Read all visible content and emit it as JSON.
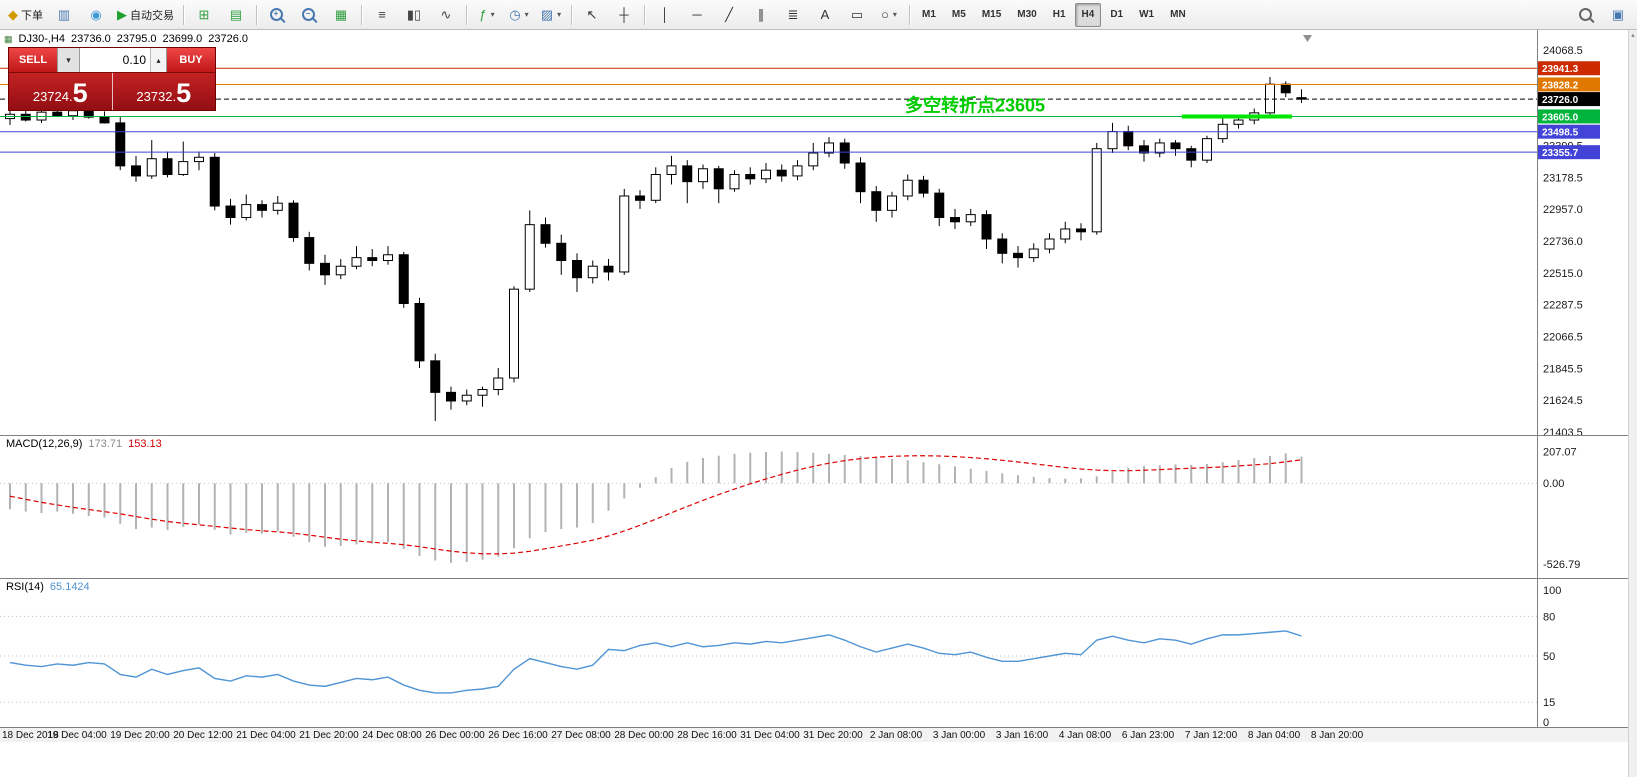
{
  "toolbar": {
    "groups": [
      {
        "items": [
          {
            "name": "new-order-button",
            "glyph": "◆",
            "color": "#d29a00",
            "label": "下单"
          },
          {
            "name": "market-watch-button",
            "glyph": "▥",
            "color": "#4878b0"
          },
          {
            "name": "data-window-button",
            "glyph": "◉",
            "color": "#3f9bd8"
          },
          {
            "name": "autotrade-button",
            "glyph": "▶",
            "color": "#1fa12e",
            "label": "自动交易"
          }
        ]
      },
      {
        "items": [
          {
            "name": "new-chart-button",
            "glyph": "⊞",
            "color": "#2e9e3f"
          },
          {
            "name": "profiles-button",
            "glyph": "▤",
            "color": "#2e9e3f"
          }
        ]
      },
      {
        "items": [
          {
            "name": "zoom-in-button",
            "mag": "+",
            "color": "#4878b0"
          },
          {
            "name": "zoom-out-button",
            "mag": "−",
            "color": "#4878b0"
          },
          {
            "name": "grid-button",
            "glyph": "▦",
            "color": "#2e9e3f"
          }
        ]
      },
      {
        "items": [
          {
            "name": "bar-chart-button",
            "glyph": "≡",
            "color": "#444444"
          },
          {
            "name": "candlestick-chart-button",
            "glyph": "▮▯",
            "color": "#444444"
          },
          {
            "name": "line-chart-button",
            "glyph": "∿",
            "color": "#444444"
          }
        ]
      },
      {
        "items": [
          {
            "name": "indicators-button",
            "glyph": "ƒ",
            "color": "#2e9e3f",
            "dropdown": true
          },
          {
            "name": "periods-button",
            "glyph": "◷",
            "color": "#4878b0",
            "dropdown": true
          },
          {
            "name": "templates-button",
            "glyph": "▨",
            "color": "#4878b0",
            "dropdown": true
          }
        ]
      },
      {
        "items": [
          {
            "name": "cursor-button",
            "glyph": "↖",
            "color": "#333333"
          },
          {
            "name": "crosshair-button",
            "glyph": "┼",
            "color": "#333333"
          }
        ]
      },
      {
        "items": [
          {
            "name": "vertical-line-button",
            "glyph": "│",
            "color": "#333333"
          },
          {
            "name": "horizontal-line-button",
            "glyph": "─",
            "color": "#333333"
          },
          {
            "name": "trendline-button",
            "glyph": "╱",
            "color": "#333333"
          },
          {
            "name": "equidistant-channel-button",
            "glyph": "∥",
            "color": "#333333"
          },
          {
            "name": "fibonacci-button",
            "glyph": "≣",
            "color": "#333333"
          },
          {
            "name": "text-button",
            "glyph": "A",
            "color": "#333333"
          },
          {
            "name": "label-button",
            "glyph": "▭",
            "color": "#333333"
          },
          {
            "name": "shapes-button",
            "glyph": "○",
            "color": "#333333",
            "dropdown": true
          }
        ]
      }
    ],
    "timeframes": [
      "M1",
      "M5",
      "M15",
      "M30",
      "H1",
      "H4",
      "D1",
      "W1",
      "MN"
    ],
    "active_timeframe": "H4",
    "right_icons": [
      {
        "name": "search-button",
        "mag": "",
        "color": "#666666"
      },
      {
        "name": "community-button",
        "glyph": "▣",
        "color": "#4878b0"
      }
    ]
  },
  "chart_header": {
    "symbol_period": "DJ30-,H4",
    "open": "23736.0",
    "high": "23795.0",
    "low": "23699.0",
    "close": "23726.0"
  },
  "one_click": {
    "sell_label": "SELL",
    "buy_label": "BUY",
    "lot": "0.10",
    "sell_price": "23724.5",
    "buy_price": "23732.5"
  },
  "annotation": {
    "text": "多空转折点23605",
    "price": 23605,
    "color": "#00cc00"
  },
  "price_levels": [
    {
      "price": 23941.3,
      "label": "23941.3",
      "color": "#cc2a00",
      "style": "solid"
    },
    {
      "price": 23828.2,
      "label": "23828.2",
      "color": "#e07800",
      "style": "solid"
    },
    {
      "price": 23726.0,
      "label": "23726.0",
      "color": "#000000",
      "style": "dashed"
    },
    {
      "price": 23605.0,
      "label": "23605.0",
      "color": "#00b43c",
      "style": "solid"
    },
    {
      "price": 23498.5,
      "label": "23498.5",
      "color": "#4343d8",
      "style": "solid"
    },
    {
      "price": 23355.7,
      "label": "23355.7",
      "color": "#4343d8",
      "style": "solid"
    }
  ],
  "green_segment": {
    "price": 23605,
    "from_bar": 74.4,
    "to_bar": 81.4,
    "color": "#00e600"
  },
  "chart_data": {
    "type": "candlestick+indicators",
    "price": {
      "type": "candlestick",
      "y_axis_ticks": [
        "24068.5",
        "23845.5",
        "23624.5",
        "23399.5",
        "23178.5",
        "22957.0",
        "22736.0",
        "22515.0",
        "22287.5",
        "22066.5",
        "21845.5",
        "21624.5",
        "21403.5"
      ],
      "candles": [
        [
          23590,
          23650,
          23545,
          23620
        ],
        [
          23620,
          23655,
          23570,
          23580
        ],
        [
          23580,
          23648,
          23560,
          23635
        ],
        [
          23635,
          23668,
          23600,
          23610
        ],
        [
          23610,
          23660,
          23580,
          23645
        ],
        [
          23645,
          23665,
          23590,
          23600
        ],
        [
          23600,
          23640,
          23555,
          23560
        ],
        [
          23560,
          23600,
          23230,
          23260
        ],
        [
          23260,
          23330,
          23150,
          23190
        ],
        [
          23190,
          23440,
          23170,
          23310
        ],
        [
          23310,
          23360,
          23180,
          23200
        ],
        [
          23200,
          23430,
          23190,
          23290
        ],
        [
          23290,
          23360,
          23230,
          23320
        ],
        [
          23320,
          23350,
          22950,
          22980
        ],
        [
          22980,
          23030,
          22850,
          22900
        ],
        [
          22900,
          23060,
          22880,
          22990
        ],
        [
          22990,
          23020,
          22900,
          22950
        ],
        [
          22950,
          23050,
          22920,
          23000
        ],
        [
          23000,
          23020,
          22730,
          22760
        ],
        [
          22760,
          22800,
          22530,
          22580
        ],
        [
          22580,
          22640,
          22430,
          22500
        ],
        [
          22500,
          22610,
          22470,
          22560
        ],
        [
          22560,
          22700,
          22540,
          22620
        ],
        [
          22620,
          22680,
          22560,
          22600
        ],
        [
          22600,
          22700,
          22570,
          22640
        ],
        [
          22640,
          22660,
          22270,
          22300
        ],
        [
          22300,
          22340,
          21850,
          21900
        ],
        [
          21900,
          21950,
          21480,
          21680
        ],
        [
          21680,
          21720,
          21560,
          21620
        ],
        [
          21620,
          21700,
          21590,
          21660
        ],
        [
          21660,
          21720,
          21580,
          21700
        ],
        [
          21700,
          21850,
          21660,
          21780
        ],
        [
          21780,
          22420,
          21750,
          22400
        ],
        [
          22400,
          22950,
          22380,
          22850
        ],
        [
          22850,
          22900,
          22690,
          22720
        ],
        [
          22720,
          22780,
          22500,
          22600
        ],
        [
          22600,
          22650,
          22380,
          22480
        ],
        [
          22480,
          22600,
          22440,
          22560
        ],
        [
          22560,
          22610,
          22460,
          22520
        ],
        [
          22520,
          23100,
          22500,
          23050
        ],
        [
          23050,
          23090,
          22960,
          23020
        ],
        [
          23020,
          23250,
          23000,
          23200
        ],
        [
          23200,
          23330,
          23130,
          23260
        ],
        [
          23260,
          23300,
          23000,
          23150
        ],
        [
          23150,
          23270,
          23100,
          23240
        ],
        [
          23240,
          23260,
          23000,
          23100
        ],
        [
          23100,
          23230,
          23080,
          23200
        ],
        [
          23200,
          23250,
          23130,
          23170
        ],
        [
          23170,
          23280,
          23140,
          23230
        ],
        [
          23230,
          23270,
          23150,
          23190
        ],
        [
          23190,
          23300,
          23160,
          23260
        ],
        [
          23260,
          23420,
          23230,
          23350
        ],
        [
          23350,
          23460,
          23320,
          23420
        ],
        [
          23420,
          23450,
          23240,
          23280
        ],
        [
          23280,
          23320,
          23000,
          23080
        ],
        [
          23080,
          23120,
          22870,
          22950
        ],
        [
          22950,
          23080,
          22900,
          23050
        ],
        [
          23050,
          23200,
          23020,
          23160
        ],
        [
          23160,
          23190,
          23040,
          23070
        ],
        [
          23070,
          23100,
          22840,
          22900
        ],
        [
          22900,
          22960,
          22820,
          22870
        ],
        [
          22870,
          22960,
          22840,
          22920
        ],
        [
          22920,
          22950,
          22680,
          22750
        ],
        [
          22750,
          22790,
          22580,
          22650
        ],
        [
          22650,
          22700,
          22550,
          22620
        ],
        [
          22620,
          22720,
          22590,
          22680
        ],
        [
          22680,
          22790,
          22650,
          22750
        ],
        [
          22750,
          22870,
          22720,
          22820
        ],
        [
          22820,
          22860,
          22740,
          22800
        ],
        [
          22800,
          23420,
          22780,
          23380
        ],
        [
          23380,
          23560,
          23350,
          23500
        ],
        [
          23500,
          23540,
          23370,
          23400
        ],
        [
          23400,
          23440,
          23290,
          23350
        ],
        [
          23350,
          23450,
          23320,
          23420
        ],
        [
          23420,
          23440,
          23330,
          23380
        ],
        [
          23380,
          23400,
          23250,
          23300
        ],
        [
          23300,
          23470,
          23280,
          23450
        ],
        [
          23450,
          23600,
          23420,
          23550
        ],
        [
          23550,
          23610,
          23520,
          23580
        ],
        [
          23580,
          23660,
          23550,
          23630
        ],
        [
          23630,
          23880,
          23610,
          23830
        ],
        [
          23830,
          23850,
          23740,
          23770
        ],
        [
          23736,
          23795,
          23699,
          23726
        ]
      ]
    },
    "macd": {
      "type": "bar+line",
      "label": "MACD(12,26,9)",
      "current": "173.71",
      "signal_current": "153.13",
      "axis_labels": [
        "207.07",
        "0.00",
        "-526.79"
      ],
      "histogram": [
        -170,
        -185,
        -195,
        -185,
        -200,
        -215,
        -225,
        -265,
        -300,
        -290,
        -305,
        -285,
        -270,
        -305,
        -335,
        -325,
        -330,
        -315,
        -350,
        -385,
        -415,
        -410,
        -400,
        -395,
        -385,
        -430,
        -475,
        -505,
        -520,
        -515,
        -500,
        -480,
        -425,
        -360,
        -320,
        -300,
        -290,
        -260,
        -180,
        -100,
        -30,
        40,
        100,
        140,
        165,
        180,
        192,
        200,
        205,
        207,
        204,
        199,
        193,
        186,
        178,
        170,
        160,
        150,
        138,
        124,
        110,
        95,
        80,
        65,
        52,
        42,
        34,
        30,
        32,
        45,
        75,
        100,
        112,
        118,
        123,
        120,
        126,
        138,
        152,
        165,
        178,
        195,
        173.71
      ],
      "signal": [
        -85,
        -105,
        -125,
        -142,
        -158,
        -172,
        -186,
        -200,
        -218,
        -235,
        -250,
        -262,
        -272,
        -282,
        -293,
        -303,
        -311,
        -318,
        -327,
        -339,
        -353,
        -366,
        -377,
        -386,
        -393,
        -402,
        -415,
        -430,
        -444,
        -455,
        -461,
        -462,
        -457,
        -445,
        -428,
        -410,
        -392,
        -372,
        -345,
        -312,
        -275,
        -235,
        -193,
        -152,
        -112,
        -74,
        -38,
        -4,
        28,
        58,
        86,
        110,
        131,
        148,
        161,
        170,
        176,
        179,
        180,
        178,
        174,
        168,
        160,
        150,
        139,
        127,
        115,
        103,
        93,
        86,
        82,
        82,
        85,
        89,
        94,
        98,
        102,
        107,
        113,
        120,
        128,
        140,
        153.13
      ]
    },
    "rsi": {
      "type": "line",
      "label": "RSI(14)",
      "current": "65.1424",
      "axis_labels": [
        "100",
        "80",
        "50",
        "15",
        "0"
      ],
      "levels": [
        80,
        50,
        15
      ],
      "values": [
        45,
        43,
        42,
        44,
        43,
        45,
        44,
        36,
        34,
        40,
        36,
        39,
        41,
        33,
        31,
        35,
        34,
        36,
        31,
        28,
        27,
        30,
        33,
        32,
        34,
        28,
        24,
        22,
        22,
        24,
        25,
        27,
        40,
        48,
        45,
        42,
        40,
        43,
        55,
        54,
        58,
        60,
        57,
        60,
        57,
        58,
        60,
        59,
        61,
        60,
        62,
        64,
        66,
        62,
        57,
        53,
        56,
        59,
        56,
        52,
        51,
        53,
        49,
        46,
        46,
        48,
        50,
        52,
        51,
        62,
        65,
        62,
        60,
        63,
        62,
        59,
        63,
        66,
        66,
        67,
        68,
        69,
        65.14
      ]
    },
    "time_labels": [
      "18 Dec 2018",
      "19 Dec 04:00",
      "19 Dec 20:00",
      "20 Dec 12:00",
      "21 Dec 04:00",
      "21 Dec 20:00",
      "24 Dec 08:00",
      "26 Dec 00:00",
      "26 Dec 16:00",
      "27 Dec 08:00",
      "28 Dec 00:00",
      "28 Dec 16:00",
      "31 Dec 04:00",
      "31 Dec 20:00",
      "2 Jan 08:00",
      "3 Jan 00:00",
      "3 Jan 16:00",
      "4 Jan 08:00",
      "6 Jan 23:00",
      "7 Jan 12:00",
      "8 Jan 04:00",
      "8 Jan 20:00"
    ]
  }
}
